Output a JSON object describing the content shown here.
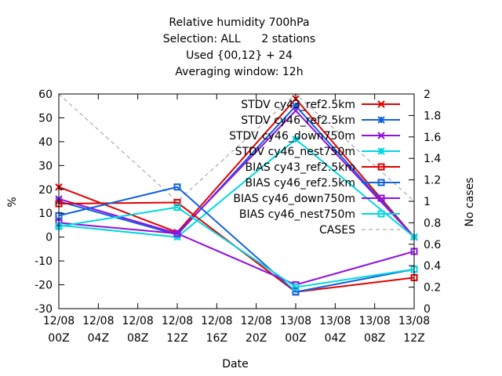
{
  "chart_data": {
    "type": "line",
    "title_lines": [
      "Relative humidity 700hPa",
      "Selection: ALL      2 stations",
      "Used {00,12} + 24",
      "Averaging window: 12h"
    ],
    "xlabel": "Date",
    "ylabel": "%",
    "y2label": "No cases",
    "ylim": [
      -30,
      60
    ],
    "y_ticks": [
      "-30",
      "-20",
      "-10",
      "0",
      "10",
      "20",
      "30",
      "40",
      "50",
      "60"
    ],
    "y2lim": [
      0,
      2
    ],
    "y2_ticks": [
      "0",
      "0.2",
      "0.4",
      "0.6",
      "0.8",
      "1",
      "1.2",
      "1.4",
      "1.6",
      "1.8",
      "2"
    ],
    "x_ticks": [
      {
        "date": "12/08",
        "hour": "00Z"
      },
      {
        "date": "12/08",
        "hour": "04Z"
      },
      {
        "date": "12/08",
        "hour": "08Z"
      },
      {
        "date": "12/08",
        "hour": "12Z"
      },
      {
        "date": "12/08",
        "hour": "16Z"
      },
      {
        "date": "12/08",
        "hour": "20Z"
      },
      {
        "date": "13/08",
        "hour": "00Z"
      },
      {
        "date": "13/08",
        "hour": "04Z"
      },
      {
        "date": "13/08",
        "hour": "08Z"
      },
      {
        "date": "13/08",
        "hour": "12Z"
      }
    ],
    "x_hours": [
      0,
      12,
      24,
      36
    ],
    "grid": false,
    "legend_position": "top-right",
    "series": [
      {
        "name": "STDV cy43_ref2.5km",
        "color": "#e00000",
        "marker": "x",
        "values": [
          21,
          2,
          58,
          0
        ]
      },
      {
        "name": "STDV cy46_ref2.5km",
        "color": "#1060e0",
        "marker": "asterisk",
        "values": [
          15,
          1,
          55,
          0
        ]
      },
      {
        "name": "STDV cy46_down750m",
        "color": "#9010e0",
        "marker": "x",
        "values": [
          16,
          1.5,
          53,
          0
        ]
      },
      {
        "name": "STDV cy46_nest750m",
        "color": "#00d8e0",
        "marker": "asterisk",
        "values": [
          5,
          0,
          41,
          0
        ]
      },
      {
        "name": "BIAS cy43_ref2.5km",
        "color": "#e00000",
        "marker": "square",
        "values": [
          14,
          14.5,
          -23,
          -17
        ]
      },
      {
        "name": "BIAS cy46_ref2.5km",
        "color": "#1060e0",
        "marker": "square",
        "values": [
          9,
          21,
          -23,
          -13.5
        ]
      },
      {
        "name": "BIAS cy46_down750m",
        "color": "#9010e0",
        "marker": "square",
        "values": [
          6,
          1.5,
          -20,
          -6
        ]
      },
      {
        "name": "BIAS cy46_nest750m",
        "color": "#00d8e0",
        "marker": "square",
        "values": [
          4.5,
          12.5,
          -21,
          -13.5
        ]
      }
    ],
    "cases": {
      "name": "CASES",
      "color": "#999999",
      "values": [
        2,
        1,
        2,
        1
      ]
    }
  }
}
